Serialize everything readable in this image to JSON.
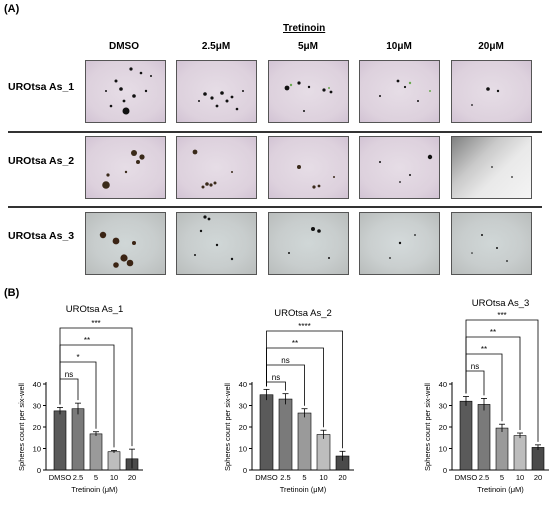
{
  "panel_a": {
    "label": "(A)",
    "treatment_header": "Tretinoin",
    "columns": [
      "DMSO",
      "2.5μM",
      "5μM",
      "10μM",
      "20μM"
    ],
    "rows": [
      "UROtsa As_1",
      "UROtsa As_2",
      "UROtsa As_3"
    ]
  },
  "panel_b": {
    "label": "(B)"
  },
  "chart_data": [
    {
      "type": "bar",
      "title": "UROtsa As_1",
      "categories": [
        "DMSO",
        "2.5",
        "5",
        "10",
        "20"
      ],
      "values": [
        27.5,
        28.5,
        16.8,
        8.5,
        5.2
      ],
      "errors": [
        1.6,
        2.6,
        1.0,
        0.6,
        4.5
      ],
      "ylabel": "Spheres count per six-well",
      "xlabel": "Tretinoin (μM)",
      "ylim": [
        0,
        40
      ],
      "yticks": [
        0,
        10,
        20,
        30,
        40
      ],
      "bar_colors": [
        "#5a5a5a",
        "#7a7a7a",
        "#9a9a9a",
        "#bdbdbd",
        "#4a4a4a"
      ],
      "significance": [
        {
          "to": "2.5",
          "label": "ns"
        },
        {
          "to": "5",
          "label": "*"
        },
        {
          "to": "10",
          "label": "**"
        },
        {
          "to": "20",
          "label": "***"
        }
      ]
    },
    {
      "type": "bar",
      "title": "UROtsa As_2",
      "categories": [
        "DMSO",
        "2.5",
        "5",
        "10",
        "20"
      ],
      "values": [
        35.0,
        33.0,
        26.5,
        16.5,
        6.5
      ],
      "errors": [
        2.5,
        2.5,
        2.0,
        2.0,
        2.2
      ],
      "ylabel": "Spheres count per six-well",
      "xlabel": "Tretinoin (μM)",
      "ylim": [
        0,
        40
      ],
      "yticks": [
        0,
        10,
        20,
        30,
        40
      ],
      "bar_colors": [
        "#5a5a5a",
        "#7a7a7a",
        "#9a9a9a",
        "#bdbdbd",
        "#4a4a4a"
      ],
      "significance": [
        {
          "to": "2.5",
          "label": "ns"
        },
        {
          "to": "5",
          "label": "ns"
        },
        {
          "to": "10",
          "label": "**"
        },
        {
          "to": "20",
          "label": "****"
        }
      ]
    },
    {
      "type": "bar",
      "title": "UROtsa As_3",
      "categories": [
        "DMSO",
        "2.5",
        "5",
        "10",
        "20"
      ],
      "values": [
        32.0,
        30.5,
        19.5,
        16.0,
        10.5
      ],
      "errors": [
        2.2,
        2.8,
        1.8,
        1.2,
        1.2
      ],
      "ylabel": "Spheres count per six-well",
      "xlabel": "Tretinoin (μM)",
      "ylim": [
        0,
        40
      ],
      "yticks": [
        0,
        10,
        20,
        30,
        40
      ],
      "bar_colors": [
        "#5a5a5a",
        "#7a7a7a",
        "#9a9a9a",
        "#bdbdbd",
        "#4a4a4a"
      ],
      "significance": [
        {
          "to": "2.5",
          "label": "ns"
        },
        {
          "to": "5",
          "label": "**"
        },
        {
          "to": "10",
          "label": "**"
        },
        {
          "to": "20",
          "label": "***"
        }
      ]
    }
  ]
}
